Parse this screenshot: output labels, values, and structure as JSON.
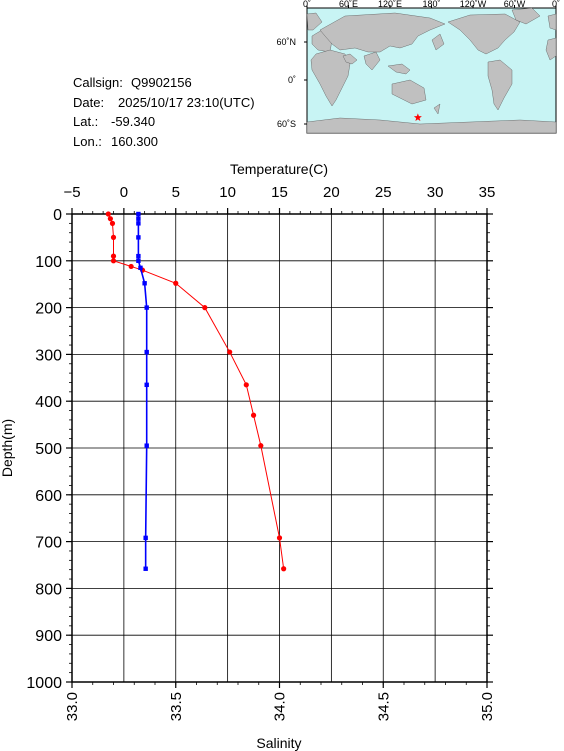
{
  "station": {
    "callsign_label": "Callsign:",
    "callsign": "Q9902156",
    "date_label": "Date:",
    "date": "2025/10/17 23:10(UTC)",
    "lat_label": "Lat.:",
    "lat": "-59.340",
    "lon_label": "Lon.:",
    "lon": "160.300"
  },
  "map": {
    "top_ticks": [
      "0˚",
      "60˚E",
      "120˚E",
      "180˚",
      "120˚W",
      "60˚W",
      "0˚"
    ],
    "side_ticks": [
      "60˚N",
      "0˚",
      "60˚S"
    ],
    "ocean_color": "#c8f4f4",
    "land_color": "#c0c0c0",
    "marker_color": "#ff0000",
    "marker_icon": "star-icon"
  },
  "chart_data": {
    "type": "line",
    "ylabel": "Depth(m)",
    "ylim": [
      1000,
      0
    ],
    "yticks": [
      "0",
      "100",
      "200",
      "300",
      "400",
      "500",
      "600",
      "700",
      "800",
      "900",
      "1000"
    ],
    "top_axis": {
      "label": "Temperature(C)",
      "lim": [
        -5,
        35
      ],
      "ticks": [
        "−5",
        "0",
        "5",
        "10",
        "15",
        "20",
        "25",
        "30",
        "35"
      ]
    },
    "bottom_axis": {
      "label": "Salinity",
      "lim": [
        33.0,
        35.0
      ],
      "ticks": [
        "33.0",
        "33.5",
        "34.0",
        "34.5",
        "35.0"
      ]
    },
    "grid": true,
    "series": [
      {
        "axis": "temperature",
        "color": "#ff0000",
        "points": [
          {
            "depth": 0,
            "value": -1.5
          },
          {
            "depth": 10,
            "value": -1.3
          },
          {
            "depth": 20,
            "value": -1.1
          },
          {
            "depth": 50,
            "value": -1.0
          },
          {
            "depth": 90,
            "value": -1.0
          },
          {
            "depth": 100,
            "value": -1.0
          },
          {
            "depth": 112,
            "value": 0.7
          },
          {
            "depth": 120,
            "value": 1.8
          },
          {
            "depth": 148,
            "value": 5.0
          },
          {
            "depth": 200,
            "value": 7.8
          },
          {
            "depth": 295,
            "value": 10.2
          },
          {
            "depth": 365,
            "value": 11.8
          },
          {
            "depth": 430,
            "value": 12.5
          },
          {
            "depth": 495,
            "value": 13.2
          },
          {
            "depth": 692,
            "value": 15.0
          },
          {
            "depth": 758,
            "value": 15.4
          }
        ]
      },
      {
        "axis": "salinity",
        "color": "#0000ff",
        "points": [
          {
            "depth": 0,
            "value": 33.32
          },
          {
            "depth": 10,
            "value": 33.32
          },
          {
            "depth": 20,
            "value": 33.32
          },
          {
            "depth": 50,
            "value": 33.32
          },
          {
            "depth": 90,
            "value": 33.32
          },
          {
            "depth": 100,
            "value": 33.32
          },
          {
            "depth": 115,
            "value": 33.33
          },
          {
            "depth": 148,
            "value": 33.35
          },
          {
            "depth": 200,
            "value": 33.36
          },
          {
            "depth": 295,
            "value": 33.36
          },
          {
            "depth": 365,
            "value": 33.36
          },
          {
            "depth": 495,
            "value": 33.36
          },
          {
            "depth": 692,
            "value": 33.355
          },
          {
            "depth": 758,
            "value": 33.355
          }
        ]
      }
    ]
  }
}
